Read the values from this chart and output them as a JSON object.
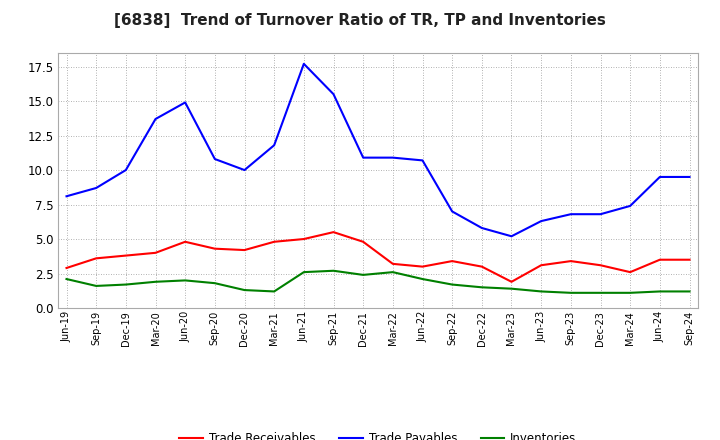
{
  "title": "[6838]  Trend of Turnover Ratio of TR, TP and Inventories",
  "title_fontsize": 11,
  "ylim": [
    0,
    18.5
  ],
  "yticks": [
    0.0,
    2.5,
    5.0,
    7.5,
    10.0,
    12.5,
    15.0,
    17.5
  ],
  "background_color": "#ffffff",
  "plot_bg_color": "#ffffff",
  "grid_color": "#999999",
  "labels": [
    "Jun-19",
    "Sep-19",
    "Dec-19",
    "Mar-20",
    "Jun-20",
    "Sep-20",
    "Dec-20",
    "Mar-21",
    "Jun-21",
    "Sep-21",
    "Dec-21",
    "Mar-22",
    "Jun-22",
    "Sep-22",
    "Dec-22",
    "Mar-23",
    "Jun-23",
    "Sep-23",
    "Dec-23",
    "Mar-24",
    "Jun-24",
    "Sep-24"
  ],
  "trade_receivables": [
    2.9,
    3.6,
    3.8,
    4.0,
    4.8,
    4.3,
    4.2,
    4.8,
    5.0,
    5.5,
    4.8,
    3.2,
    3.0,
    3.4,
    3.0,
    1.9,
    3.1,
    3.4,
    3.1,
    2.6,
    3.5,
    3.5
  ],
  "trade_payables": [
    8.1,
    8.7,
    10.0,
    13.7,
    14.9,
    10.8,
    10.0,
    11.8,
    17.7,
    15.5,
    10.9,
    10.9,
    10.7,
    7.0,
    5.8,
    5.2,
    6.3,
    6.8,
    6.8,
    7.4,
    9.5,
    9.5
  ],
  "inventories": [
    2.1,
    1.6,
    1.7,
    1.9,
    2.0,
    1.8,
    1.3,
    1.2,
    2.6,
    2.7,
    2.4,
    2.6,
    2.1,
    1.7,
    1.5,
    1.4,
    1.2,
    1.1,
    1.1,
    1.1,
    1.2,
    1.2
  ],
  "tr_color": "#ff0000",
  "tp_color": "#0000ff",
  "inv_color": "#008000",
  "line_width": 1.5,
  "legend_labels": [
    "Trade Receivables",
    "Trade Payables",
    "Inventories"
  ]
}
